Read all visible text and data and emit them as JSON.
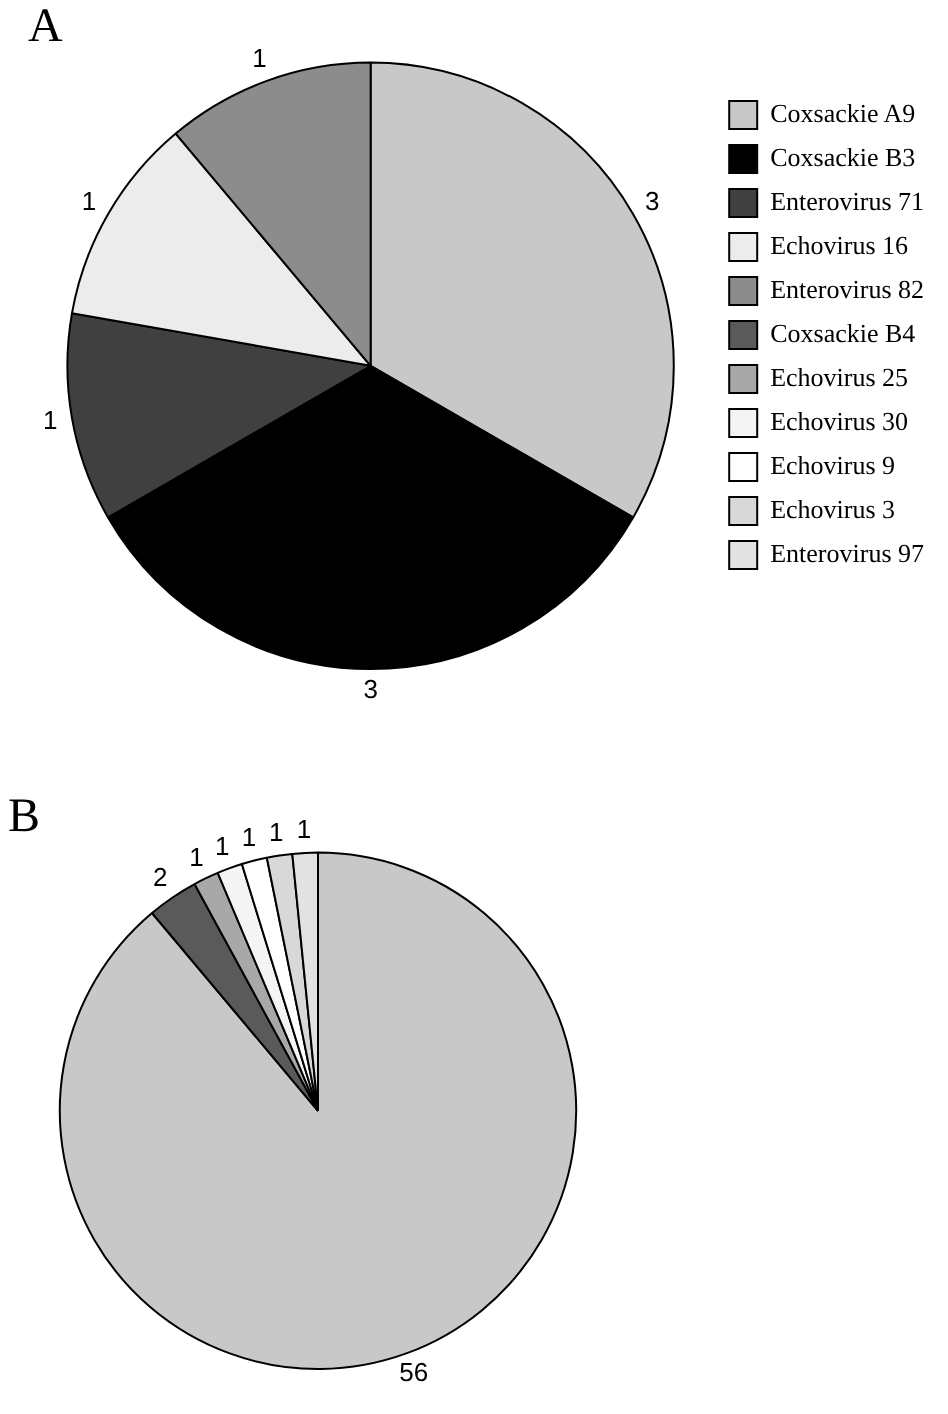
{
  "chart_data": [
    {
      "type": "pie",
      "title": "A",
      "categories": [
        "Coxsackie A9",
        "Coxsackie B3",
        "Enterovirus 71",
        "Echovirus 16",
        "Enterovirus 82",
        "Coxsackie B4",
        "Echovirus 25",
        "Echovirus 30",
        "Echovirus 9",
        "Echovirus 3",
        "Enterovirus 97"
      ],
      "values": [
        3,
        3,
        1,
        1,
        1,
        0,
        0,
        0,
        0,
        0,
        0
      ],
      "colors": [
        "#c8c8c8",
        "#000000",
        "#404040",
        "#ececec",
        "#8c8c8c",
        "#5a5a5a",
        "#a8a8a8",
        "#f4f4f4",
        "#ffffff",
        "#d8d8d8",
        "#e2e2e2"
      ],
      "legend": "right",
      "data_labels": true
    },
    {
      "type": "pie",
      "title": "B",
      "categories": [
        null,
        null,
        null,
        null,
        null,
        null,
        null
      ],
      "values": [
        56,
        2,
        1,
        1,
        1,
        1,
        1
      ],
      "colors": [
        "#c8c8c8",
        "#5a5a5a",
        "#a8a8a8",
        "#f4f4f4",
        "#ffffff",
        "#d8d8d8",
        "#e2e2e2"
      ],
      "data_labels": true
    }
  ]
}
